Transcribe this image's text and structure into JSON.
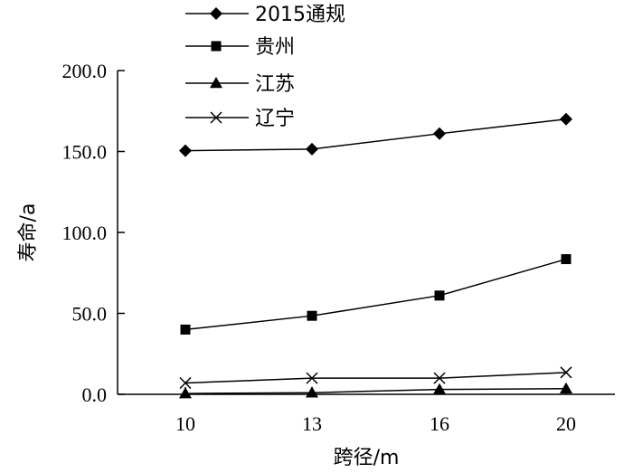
{
  "chart_data": {
    "type": "line",
    "xlabel": "跨径/m",
    "ylabel": "寿命/a",
    "categories": [
      "10",
      "13",
      "16",
      "20"
    ],
    "x": [
      10,
      13,
      16,
      20
    ],
    "ylim": [
      0,
      200
    ],
    "yticks": [
      "0.0",
      "50.0",
      "100.0",
      "150.0",
      "200.0"
    ],
    "grid": false,
    "legend_position": "top-center",
    "series": [
      {
        "name": "2015通规",
        "marker": "diamond",
        "values": [
          150.5,
          151.5,
          161.0,
          170.0
        ]
      },
      {
        "name": "贵州",
        "marker": "square",
        "values": [
          40.0,
          48.5,
          61.0,
          83.5
        ]
      },
      {
        "name": "江苏",
        "marker": "triangle",
        "values": [
          0.5,
          1.0,
          3.0,
          3.5
        ]
      },
      {
        "name": "辽宁",
        "marker": "x",
        "values": [
          7.0,
          10.0,
          10.0,
          13.5
        ]
      }
    ]
  }
}
